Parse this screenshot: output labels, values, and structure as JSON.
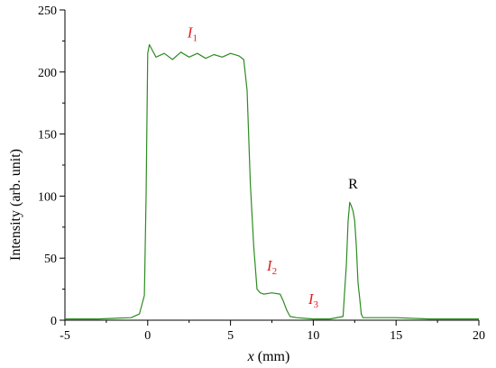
{
  "chart_data": {
    "type": "line",
    "xlabel_var": "x",
    "xlabel_unit": " (mm)",
    "ylabel": "Intensity (arb. unit)",
    "xlim": [
      -5,
      20
    ],
    "ylim": [
      0,
      250
    ],
    "xticks": [
      -5,
      0,
      5,
      10,
      15,
      20
    ],
    "yticks": [
      0,
      50,
      100,
      150,
      200,
      250
    ],
    "xtick_labels": [
      "-5",
      "0",
      "5",
      "10",
      "15",
      "20"
    ],
    "ytick_labels": [
      "0",
      "50",
      "100",
      "150",
      "200",
      "250"
    ],
    "grid": false,
    "line_color": "#2e8b22",
    "annotation_color": "#e02020",
    "annotations": [
      {
        "main": "I",
        "sub": "1",
        "x": 2.7,
        "y": 228
      },
      {
        "main": "I",
        "sub": "2",
        "x": 7.5,
        "y": 40
      },
      {
        "main": "I",
        "sub": "3",
        "x": 10.0,
        "y": 13
      },
      {
        "main": "R",
        "sub": "",
        "x": 12.4,
        "y": 106
      }
    ],
    "series": [
      {
        "x": [
          -5.0,
          -3.0,
          -1.0,
          -0.5,
          -0.2,
          -0.1,
          0.0,
          0.1,
          0.5,
          1.0,
          1.5,
          2.0,
          2.5,
          3.0,
          3.5,
          4.0,
          4.5,
          5.0,
          5.5,
          5.8,
          6.0,
          6.2,
          6.4,
          6.6,
          6.8,
          7.0,
          7.5,
          8.0,
          8.2,
          8.4,
          8.6,
          9.0,
          10.0,
          11.0,
          11.8,
          12.0,
          12.1,
          12.2,
          12.3,
          12.4,
          12.5,
          12.6,
          12.7,
          12.8,
          12.9,
          13.0,
          13.5,
          15.0,
          17.0,
          20.0
        ],
        "y": [
          1,
          1,
          2,
          5,
          20,
          100,
          215,
          222,
          212,
          215,
          210,
          216,
          212,
          215,
          211,
          214,
          212,
          215,
          213,
          210,
          185,
          110,
          60,
          25,
          22,
          21,
          22,
          21,
          15,
          8,
          3,
          2,
          1,
          1,
          3,
          45,
          80,
          95,
          92,
          88,
          80,
          60,
          30,
          18,
          5,
          2,
          2,
          2,
          1,
          1
        ]
      }
    ]
  }
}
